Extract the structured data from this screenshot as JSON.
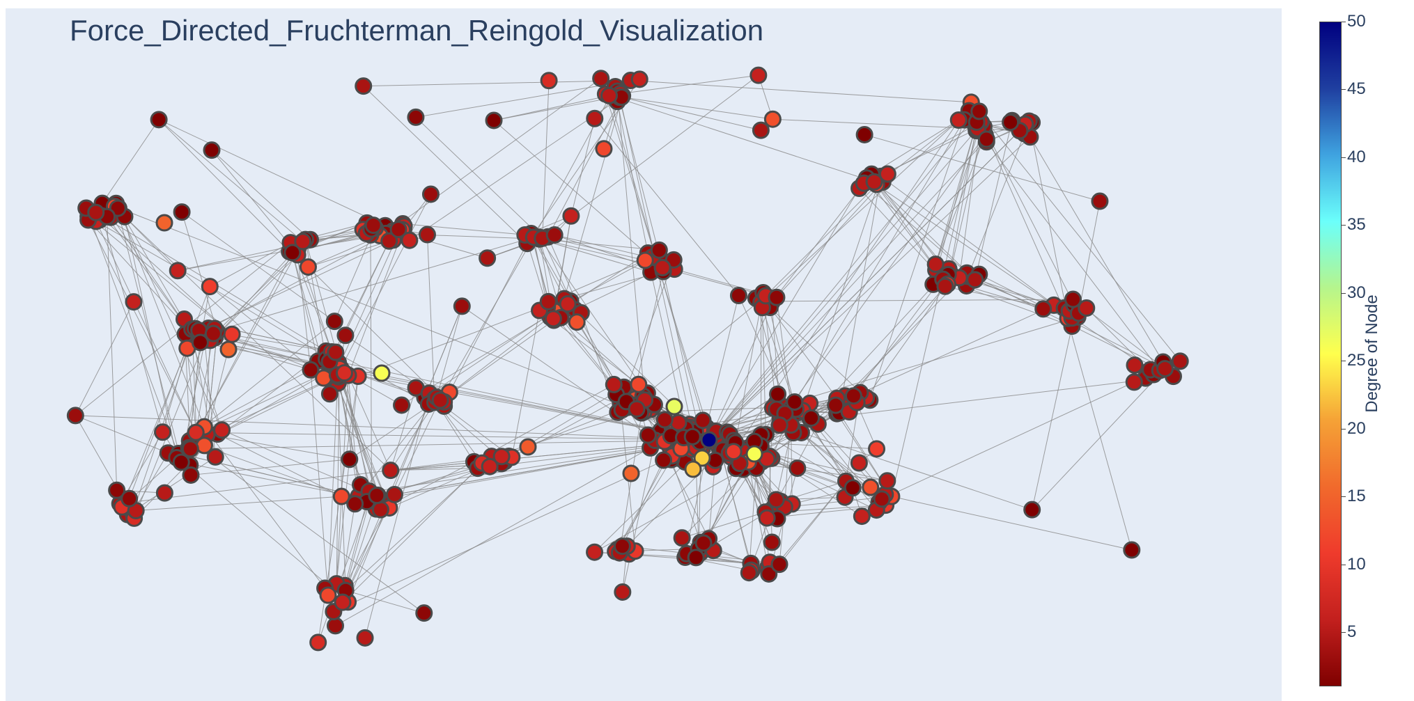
{
  "title": "Force_Directed_Fruchterman_Reingold_Visualization",
  "colorbar": {
    "title": "Degree of Node",
    "ticks": [
      "50",
      "45",
      "40",
      "35",
      "30",
      "25",
      "20",
      "15",
      "10",
      "5"
    ],
    "range": [
      1,
      50
    ],
    "colorscale": [
      "#7f0000",
      "#c3201e",
      "#ef3b2c",
      "#f16a2c",
      "#f5a236",
      "#ffff4d",
      "#b5f58d",
      "#6bfffb",
      "#3fa3e0",
      "#1f3fa0",
      "#000080"
    ]
  },
  "chart_data": {
    "type": "network",
    "title": "Force_Directed_Fruchterman_Reingold_Visualization",
    "colorbar_label": "Degree of Node",
    "color_range": [
      1,
      50
    ],
    "node_count_estimate": 520,
    "highlighted_nodes": [
      {
        "degree": 50
      },
      {
        "degree": 23
      },
      {
        "degree": 22
      },
      {
        "degree": 26
      },
      {
        "degree": 27
      },
      {
        "degree": 26
      },
      {
        "degree": 15
      },
      {
        "degree": 15
      },
      {
        "degree": 15
      },
      {
        "degree": 14
      }
    ],
    "grid": false,
    "legend": "colorbar-right"
  }
}
